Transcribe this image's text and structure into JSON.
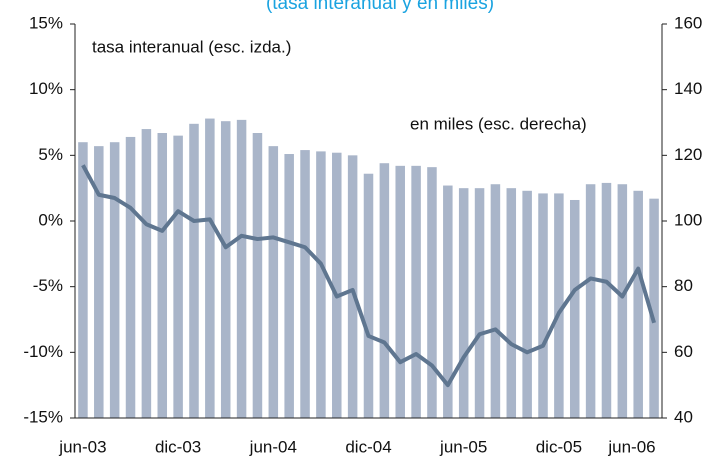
{
  "chart_data": {
    "type": "bar_line",
    "title": "(tasa interanual y en miles)",
    "categories": [
      "jun-03",
      null,
      null,
      null,
      null,
      null,
      "dic-03",
      null,
      null,
      null,
      null,
      null,
      "jun-04",
      null,
      null,
      null,
      null,
      null,
      "dic-04",
      null,
      null,
      null,
      null,
      null,
      "jun-05",
      null,
      null,
      null,
      null,
      null,
      "dic-05",
      null,
      null,
      null,
      null,
      null,
      "jun-06"
    ],
    "series": [
      {
        "name": "tasa interanual (esc. izda.)",
        "color": "#a9b5c9",
        "values": [
          6,
          5.7,
          6,
          6.4,
          7,
          6.7,
          6.5,
          7.4,
          7.8,
          7.6,
          7.7,
          6.7,
          5.7,
          5.1,
          5.4,
          5.3,
          5.2,
          5,
          3.6,
          4.4,
          4.2,
          4.2,
          4.1,
          2.7,
          2.5,
          2.5,
          2.8,
          2.5,
          2.3,
          2.1,
          2.1,
          1.6,
          2.8,
          2.9,
          2.8,
          2.3,
          1.7
        ]
      },
      {
        "name": "en miles (esc. derecha)",
        "color": "#5f7690",
        "axis": "y2",
        "values": [
          117,
          108,
          107,
          104,
          99,
          97,
          103,
          100,
          100.5,
          92,
          95.5,
          94.5,
          95,
          93.5,
          92,
          87,
          77,
          79,
          65,
          63,
          57,
          59.5,
          56,
          50,
          58.5,
          65.5,
          67,
          62.5,
          60,
          62,
          72,
          79,
          82.5,
          81.5,
          77,
          85.5,
          69
        ]
      }
    ],
    "ylim": [
      -15,
      15
    ],
    "yticks": [
      {
        "value": -15,
        "label": "-15%"
      },
      {
        "value": -10,
        "label": "-10%"
      },
      {
        "value": -5,
        "label": "-5%"
      },
      {
        "value": 0,
        "label": "0%"
      },
      {
        "value": 5,
        "label": "5%"
      },
      {
        "value": 10,
        "label": "10%"
      },
      {
        "value": 15,
        "label": "15%"
      }
    ],
    "y2lim": [
      40,
      160
    ],
    "y2ticks": [
      40,
      60,
      80,
      100,
      120,
      140,
      160
    ]
  }
}
